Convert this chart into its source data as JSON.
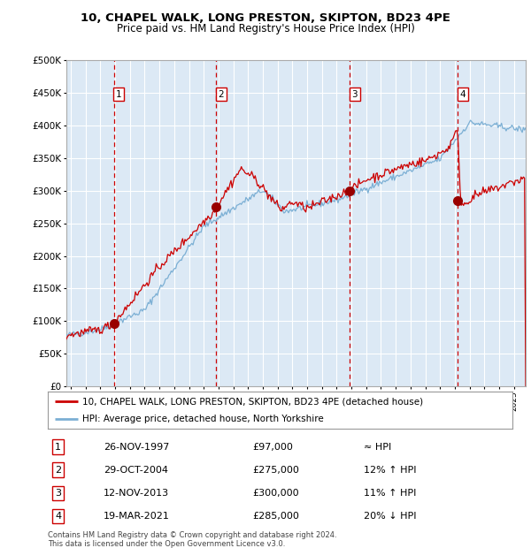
{
  "title_line1": "10, CHAPEL WALK, LONG PRESTON, SKIPTON, BD23 4PE",
  "title_line2": "Price paid vs. HM Land Registry's House Price Index (HPI)",
  "bg_color": "#dce9f5",
  "hpi_color": "#7bafd4",
  "price_color": "#cc0000",
  "sale_marker_color": "#990000",
  "grid_color": "#ffffff",
  "vline_color": "#cc0000",
  "ylim": [
    0,
    500000
  ],
  "yticks": [
    0,
    50000,
    100000,
    150000,
    200000,
    250000,
    300000,
    350000,
    400000,
    450000,
    500000
  ],
  "xlim_start": 1994.7,
  "xlim_end": 2025.8,
  "sales": [
    {
      "label": "1",
      "year": 1997.91,
      "price": 97000,
      "date": "26-NOV-1997",
      "rel": "≈ HPI"
    },
    {
      "label": "2",
      "year": 2004.83,
      "price": 275000,
      "date": "29-OCT-2004",
      "rel": "12% ↑ HPI"
    },
    {
      "label": "3",
      "year": 2013.87,
      "price": 300000,
      "date": "12-NOV-2013",
      "rel": "11% ↑ HPI"
    },
    {
      "label": "4",
      "year": 2021.21,
      "price": 285000,
      "date": "19-MAR-2021",
      "rel": "20% ↓ HPI"
    }
  ],
  "legend_line1": "10, CHAPEL WALK, LONG PRESTON, SKIPTON, BD23 4PE (detached house)",
  "legend_line2": "HPI: Average price, detached house, North Yorkshire",
  "footer1": "Contains HM Land Registry data © Crown copyright and database right 2024.",
  "footer2": "This data is licensed under the Open Government Licence v3.0."
}
